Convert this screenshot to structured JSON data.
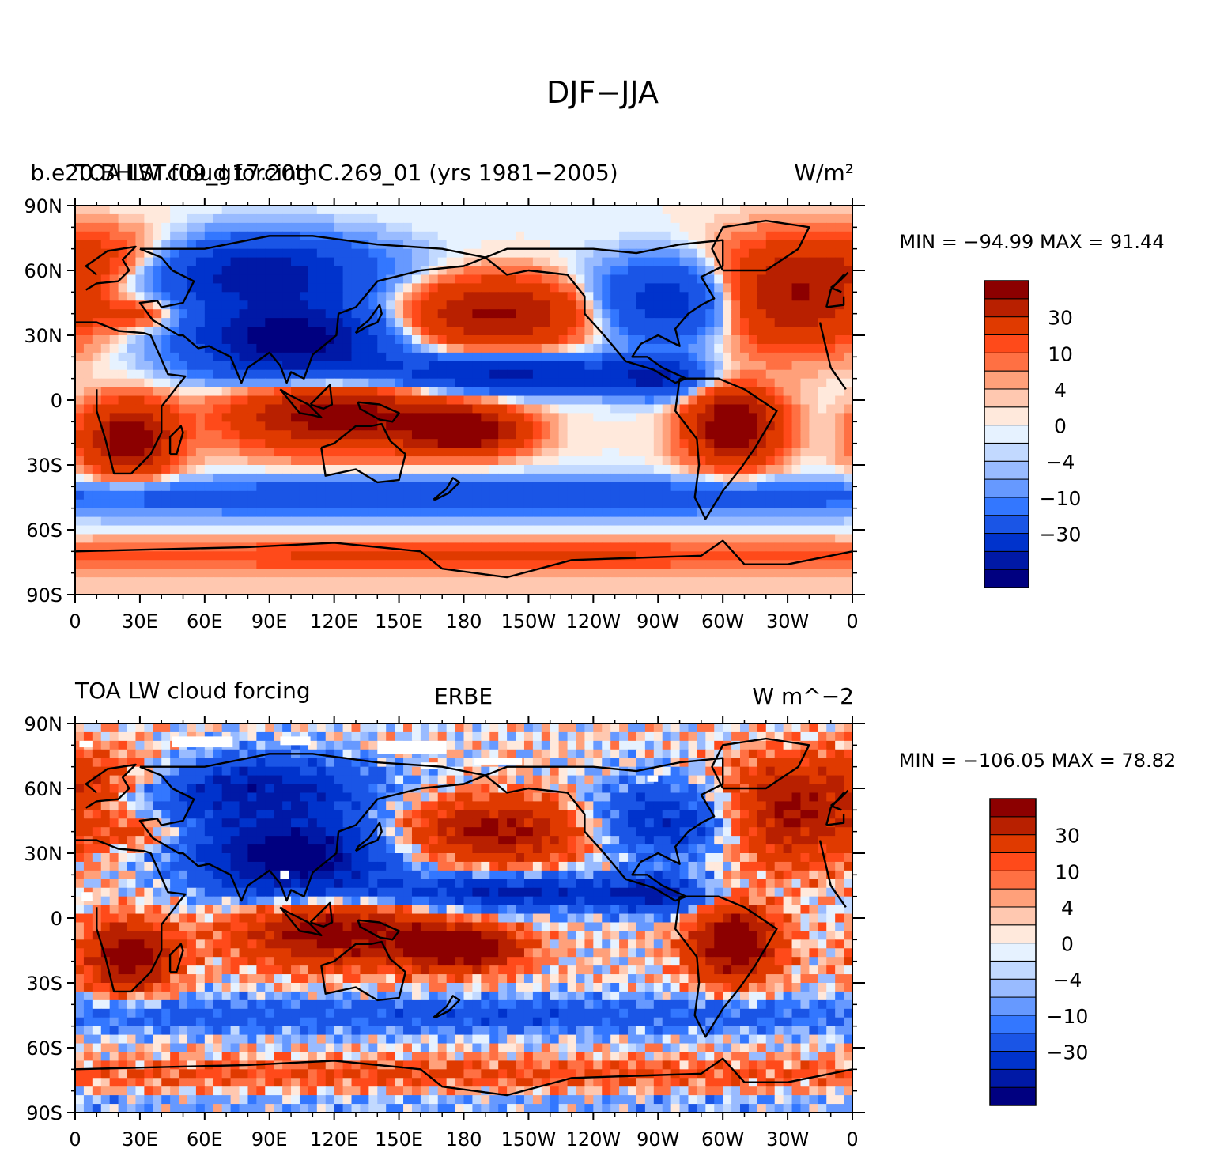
{
  "figure_title": "DJF−JJA",
  "colorbar": {
    "colors": [
      "#000080",
      "#0019a6",
      "#0033cc",
      "#1a55e6",
      "#3377ff",
      "#6699ff",
      "#99bbff",
      "#c2d9ff",
      "#e6f2ff",
      "#ffe9dc",
      "#ffc8b0",
      "#ffa07a",
      "#ff7043",
      "#ff4a1a",
      "#e03a00",
      "#b82000",
      "#8c0000"
    ],
    "labels": [
      {
        "text": "−30",
        "at_boundary": 3
      },
      {
        "text": "−10",
        "at_boundary": 5
      },
      {
        "text": "−4",
        "at_boundary": 7
      },
      {
        "text": "0",
        "at_boundary": 9
      },
      {
        "text": "4",
        "at_boundary": 11
      },
      {
        "text": "10",
        "at_boundary": 13
      },
      {
        "text": "30",
        "at_boundary": 15
      }
    ]
  },
  "chart_data": [
    {
      "type": "heatmap",
      "title_left": "TOA LW cloud forcing",
      "title_center": "b.e20.BHIST.f09_g17.20thC.269_01 (yrs 1981−2005)",
      "title_right": "W/m²",
      "stats": "MIN = −94.99  MAX =  91.44",
      "min": -94.99,
      "max": 91.44,
      "xlim": [
        0,
        360
      ],
      "ylim": [
        -90,
        90
      ],
      "x_ticks": [
        "0",
        "30E",
        "60E",
        "90E",
        "120E",
        "150E",
        "180",
        "150W",
        "120W",
        "90W",
        "60W",
        "30W",
        "0"
      ],
      "y_ticks": [
        "90N",
        "60N",
        "30N",
        "0",
        "30S",
        "60S",
        "90S"
      ]
    },
    {
      "type": "heatmap",
      "title_left": "TOA LW cloud forcing",
      "title_center": "ERBE",
      "title_right": "W m^−2",
      "stats": "MIN = −106.05  MAX =  78.82",
      "min": -106.05,
      "max": 78.82,
      "xlim": [
        0,
        360
      ],
      "ylim": [
        -90,
        90
      ],
      "x_ticks": [
        "0",
        "30E",
        "60E",
        "90E",
        "120E",
        "150E",
        "180",
        "150W",
        "120W",
        "90W",
        "60W",
        "30W",
        "0"
      ],
      "y_ticks": [
        "90N",
        "60N",
        "30N",
        "0",
        "30S",
        "60S",
        "90S"
      ]
    }
  ]
}
